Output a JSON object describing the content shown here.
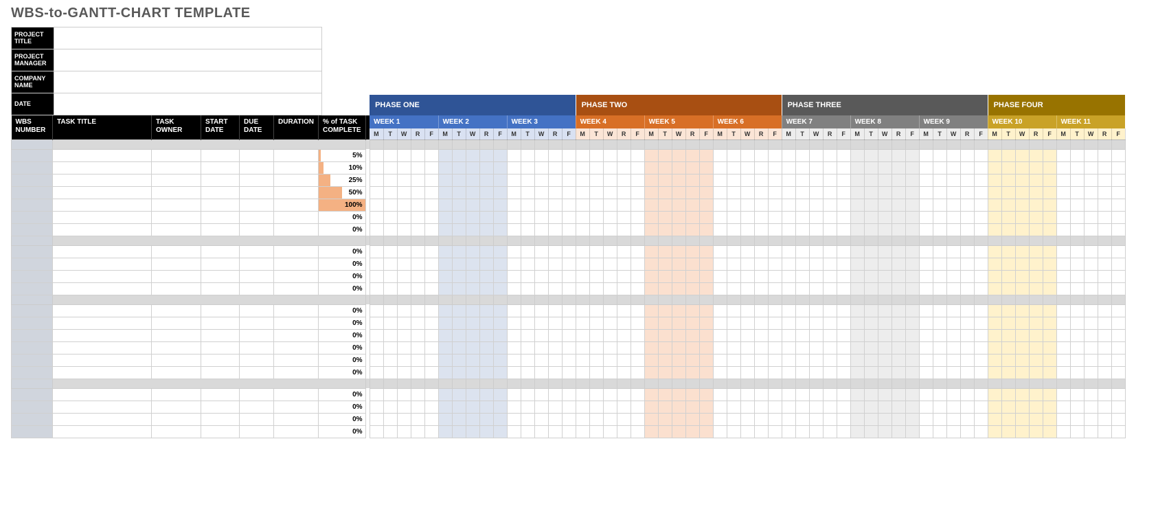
{
  "title": "WBS-to-GANTT-CHART TEMPLATE",
  "info_labels": {
    "project_title": "PROJECT TITLE",
    "project_manager": "PROJECT MANAGER",
    "company_name": "COMPANY NAME",
    "date": "DATE"
  },
  "info_values": {
    "project_title": "",
    "project_manager": "",
    "company_name": "",
    "date": ""
  },
  "columns": {
    "wbs_number": "WBS NUMBER",
    "task_title": "TASK TITLE",
    "task_owner": "TASK OWNER",
    "start_date": "START DATE",
    "due_date": "DUE DATE",
    "duration": "DURATION",
    "pct_complete": "% of TASK COMPLETE"
  },
  "phases": [
    {
      "label": "PHASE ONE",
      "bg": "#2f5496",
      "week_bg": "#4472c4",
      "day_bg": "#d9e1f2",
      "day_color": "#333",
      "weeks": [
        1,
        2,
        3
      ]
    },
    {
      "label": "PHASE TWO",
      "bg": "#a84f12",
      "week_bg": "#d86f26",
      "day_bg": "#fbe5d6",
      "day_color": "#333",
      "weeks": [
        4,
        5,
        6
      ]
    },
    {
      "label": "PHASE THREE",
      "bg": "#595959",
      "week_bg": "#808080",
      "day_bg": "#ededed",
      "day_color": "#333",
      "weeks": [
        7,
        8,
        9
      ]
    },
    {
      "label": "PHASE FOUR",
      "bg": "#987300",
      "week_bg": "#c9a227",
      "day_bg": "#fff2cc",
      "day_color": "#333",
      "weeks": [
        10,
        11
      ]
    }
  ],
  "week_prefix": "WEEK ",
  "days": [
    "M",
    "T",
    "W",
    "R",
    "F"
  ],
  "pct_fill_color": "#f4b183",
  "shaded_week_cols": {
    "0": {
      "weeks": [
        2
      ],
      "bg": "#dce3ef"
    },
    "1": {
      "weeks": [
        5
      ],
      "bg": "#fbe0cf"
    },
    "2": {
      "weeks": [
        8
      ],
      "bg": "#ededed"
    },
    "3": {
      "weeks": [
        10
      ],
      "bg": "#fff2cc"
    }
  },
  "groups": [
    {
      "rows": [
        {
          "pct": 5
        },
        {
          "pct": 10
        },
        {
          "pct": 25
        },
        {
          "pct": 50
        },
        {
          "pct": 100
        },
        {
          "pct": 0
        },
        {
          "pct": 0
        }
      ]
    },
    {
      "rows": [
        {
          "pct": 0
        },
        {
          "pct": 0
        },
        {
          "pct": 0
        },
        {
          "pct": 0
        }
      ]
    },
    {
      "rows": [
        {
          "pct": 0
        },
        {
          "pct": 0
        },
        {
          "pct": 0
        },
        {
          "pct": 0
        },
        {
          "pct": 0
        },
        {
          "pct": 0
        }
      ]
    },
    {
      "rows": [
        {
          "pct": 0
        },
        {
          "pct": 0
        },
        {
          "pct": 0
        },
        {
          "pct": 0
        }
      ]
    }
  ]
}
